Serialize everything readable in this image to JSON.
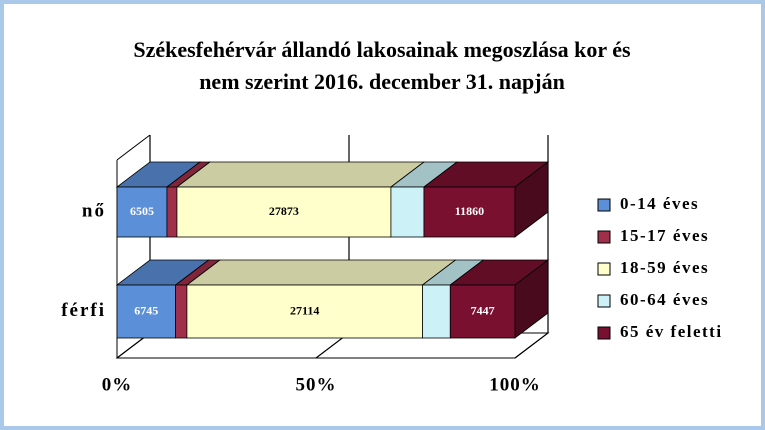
{
  "chart_data": {
    "type": "stacked_bar_3d",
    "stack": "percent",
    "title": "Székesfehérvár állandó lakosainak megoszlása kor és",
    "subtitle": "nem szerint 2016. december 31. napján",
    "categories": [
      "nő",
      "férfi"
    ],
    "series": [
      {
        "name": "0-14 éves",
        "color": "#5b8fd8",
        "values": [
          6505,
          6745
        ],
        "labels": true,
        "label_color": "#ffffff"
      },
      {
        "name": "15-17 éves",
        "color": "#a0304a",
        "values": [
          1300,
          1300
        ],
        "labels": false,
        "label_color": "#ffffff"
      },
      {
        "name": "18-59 éves",
        "color": "#ffffcc",
        "values": [
          27873,
          27114
        ],
        "labels": true,
        "label_color": "#000000"
      },
      {
        "name": "60-64 éves",
        "color": "#ccf2f8",
        "values": [
          4300,
          3200
        ],
        "labels": false,
        "label_color": "#000000"
      },
      {
        "name": "65 év feletti",
        "color": "#7a1030",
        "values": [
          11860,
          7447
        ],
        "labels": true,
        "label_color": "#ffffff"
      }
    ],
    "xlim": [
      0,
      100
    ],
    "xticks": [
      {
        "value": 0,
        "label": "0%"
      },
      {
        "value": 50,
        "label": "50%"
      },
      {
        "value": 100,
        "label": "100%"
      }
    ],
    "grid": true,
    "legend": "right"
  }
}
